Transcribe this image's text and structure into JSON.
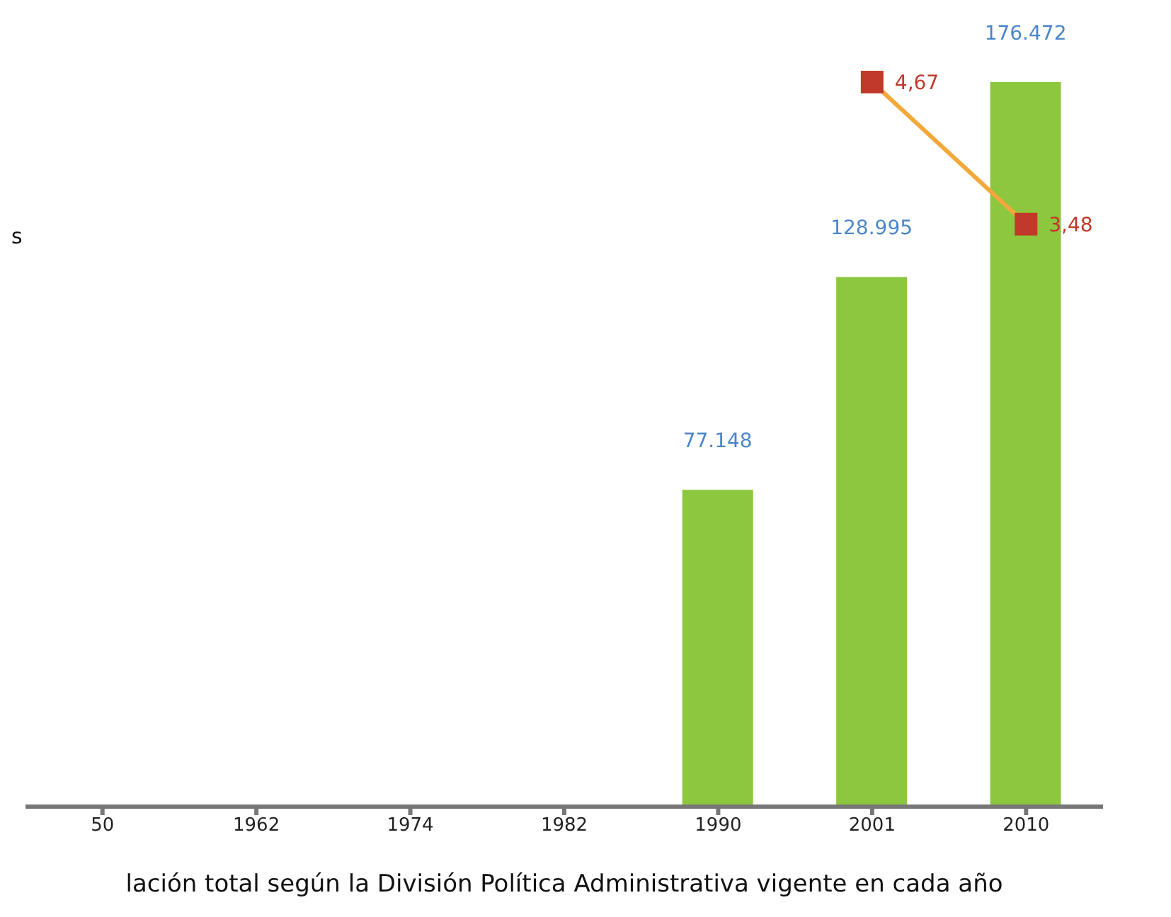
{
  "chart_data": {
    "type": "bar",
    "categories": [
      "50",
      "1962",
      "1974",
      "1982",
      "1990",
      "2001",
      "2010"
    ],
    "xlabel": "lación total según la División Política Administrativa vigente en cada año",
    "annotations": [
      "s"
    ],
    "tick_labels": "x",
    "legend": false,
    "grid": false,
    "series": [
      {
        "color": "#8dc63f",
        "values": [
          null,
          null,
          null,
          null,
          77148,
          128995,
          176472
        ],
        "value_labels": [
          null,
          null,
          null,
          null,
          "77.148",
          "128.995",
          "176.472"
        ]
      },
      {
        "type": "line",
        "axis": "y2",
        "color": "#f3a83b",
        "marker": "square",
        "values": [
          null,
          null,
          null,
          null,
          null,
          4.67,
          3.48
        ],
        "value_labels": [
          null,
          null,
          null,
          null,
          null,
          "4,67",
          "3,48"
        ]
      }
    ]
  }
}
